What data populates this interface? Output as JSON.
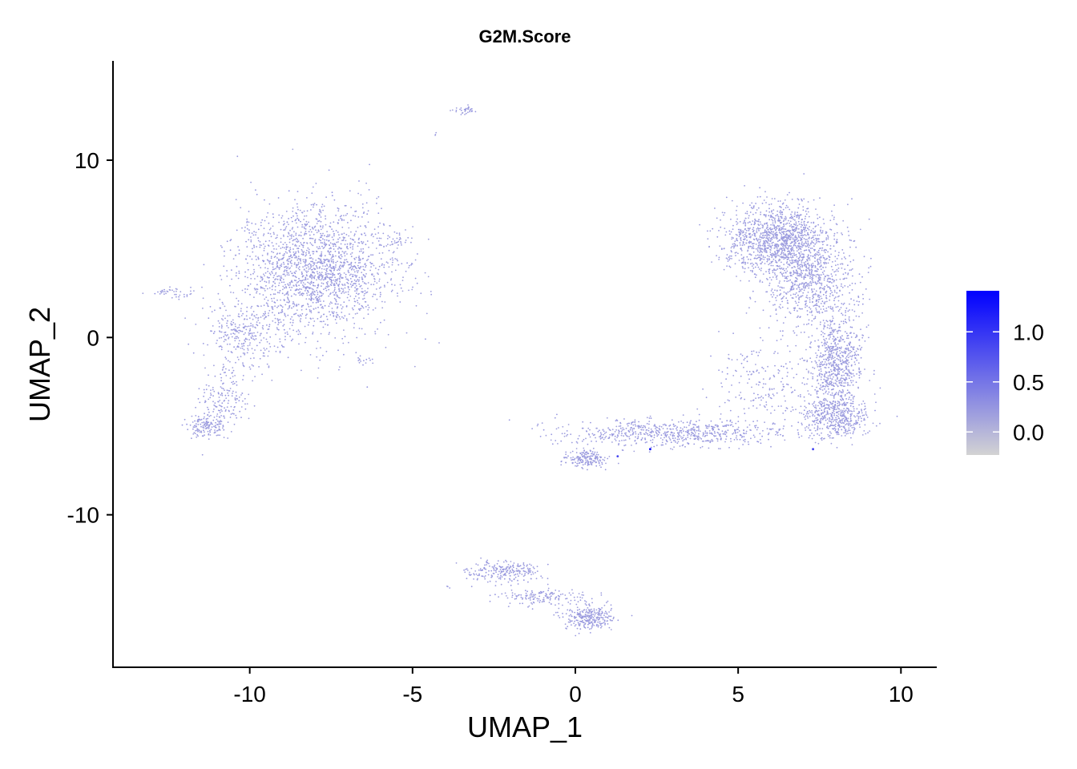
{
  "chart_data": {
    "type": "scatter",
    "title": "G2M.Score",
    "xlabel": "UMAP_1",
    "ylabel": "UMAP_2",
    "xlim": [
      -14.2,
      11.1
    ],
    "ylim": [
      -18.6,
      15.6
    ],
    "x_ticks": [
      {
        "value": -10,
        "label": "-10"
      },
      {
        "value": -5,
        "label": "-5"
      },
      {
        "value": 0,
        "label": "0"
      },
      {
        "value": 5,
        "label": "5"
      },
      {
        "value": 10,
        "label": "10"
      }
    ],
    "y_ticks": [
      {
        "value": -10,
        "label": "-10"
      },
      {
        "value": 0,
        "label": "0"
      },
      {
        "value": 10,
        "label": "10"
      }
    ],
    "grid": false,
    "point_color_low": "#d3d3d3",
    "point_color_high": "#0000ff",
    "colorbar": {
      "min": -0.23,
      "max": 1.41,
      "ticks": [
        {
          "value": 0.0,
          "label": "0.0"
        },
        {
          "value": 0.5,
          "label": "0.5"
        },
        {
          "value": 1.0,
          "label": "1.0"
        }
      ],
      "placement": "right"
    },
    "clusters": [
      {
        "cx": -8.0,
        "cy": 3.8,
        "sx": 1.6,
        "sy": 2.4,
        "n": 1900,
        "value": 0.2
      },
      {
        "cx": -10.2,
        "cy": 0.0,
        "sx": 0.8,
        "sy": 1.3,
        "n": 280,
        "value": 0.2
      },
      {
        "cx": -10.8,
        "cy": -3.4,
        "sx": 0.45,
        "sy": 1.1,
        "n": 160,
        "value": 0.2
      },
      {
        "cx": -11.3,
        "cy": -5.0,
        "sx": 0.35,
        "sy": 0.45,
        "n": 140,
        "value": 0.2
      },
      {
        "cx": -12.3,
        "cy": 2.5,
        "sx": 0.45,
        "sy": 0.22,
        "n": 40,
        "value": 0.2
      },
      {
        "cx": -5.5,
        "cy": 5.5,
        "sx": 0.35,
        "sy": 0.25,
        "n": 25,
        "value": 0.2
      },
      {
        "cx": -6.5,
        "cy": -1.3,
        "sx": 0.2,
        "sy": 0.2,
        "n": 14,
        "value": 0.2
      },
      {
        "cx": -3.4,
        "cy": 12.8,
        "sx": 0.25,
        "sy": 0.2,
        "n": 35,
        "value": 0.2
      },
      {
        "cx": -4.3,
        "cy": 11.4,
        "sx": 0.05,
        "sy": 0.08,
        "n": 3,
        "value": 0.2
      },
      {
        "cx": 6.3,
        "cy": 5.5,
        "sx": 1.1,
        "sy": 1.3,
        "n": 1300,
        "value": 0.2
      },
      {
        "cx": 7.2,
        "cy": 3.0,
        "sx": 0.9,
        "sy": 1.5,
        "n": 650,
        "value": 0.2
      },
      {
        "cx": 8.0,
        "cy": -1.5,
        "sx": 0.55,
        "sy": 1.8,
        "n": 700,
        "value": 0.2
      },
      {
        "cx": 8.0,
        "cy": -4.5,
        "sx": 0.7,
        "sy": 0.8,
        "n": 450,
        "value": 0.2
      },
      {
        "cx": 5.8,
        "cy": -2.5,
        "sx": 1.0,
        "sy": 1.8,
        "n": 200,
        "value": 0.2
      },
      {
        "cx": 3.0,
        "cy": -5.4,
        "sx": 2.3,
        "sy": 0.5,
        "n": 650,
        "value": 0.2
      },
      {
        "cx": 0.3,
        "cy": -6.8,
        "sx": 0.45,
        "sy": 0.3,
        "n": 180,
        "value": 0.2
      },
      {
        "cx": -2.2,
        "cy": -13.2,
        "sx": 0.75,
        "sy": 0.4,
        "n": 220,
        "value": 0.2
      },
      {
        "cx": -0.9,
        "cy": -14.6,
        "sx": 0.9,
        "sy": 0.35,
        "n": 150,
        "value": 0.2
      },
      {
        "cx": 0.4,
        "cy": -15.8,
        "sx": 0.5,
        "sy": 0.45,
        "n": 280,
        "value": 0.2
      },
      {
        "cx": -3.9,
        "cy": -14.1,
        "sx": 0.05,
        "sy": 0.05,
        "n": 3,
        "value": 0.2
      }
    ],
    "highlights": [
      {
        "x": 2.3,
        "y": -6.3,
        "value": 1.3
      },
      {
        "x": 1.3,
        "y": -6.7,
        "value": 0.9
      },
      {
        "x": 7.3,
        "y": -6.3,
        "value": 0.9
      }
    ]
  }
}
